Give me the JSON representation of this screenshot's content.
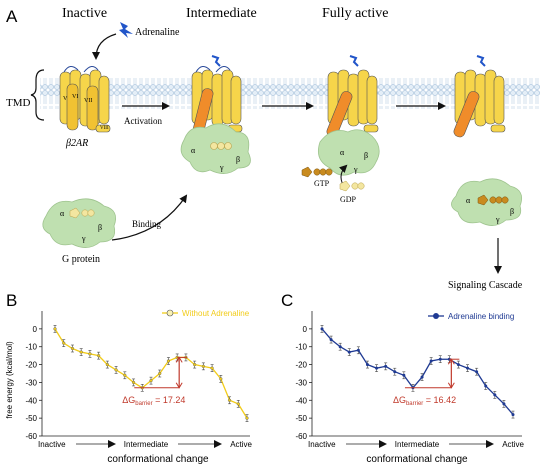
{
  "panelA": {
    "panel_label": "A",
    "stages": [
      "Inactive",
      "Intermediate",
      "Fully active"
    ],
    "adrenaline_label": "Adrenaline",
    "tmd_label": "TMD",
    "receptor_label": "β2AR",
    "activation_label": "Activation",
    "binding_label": "Binding",
    "gprotein_label": "G protein",
    "gtp_label": "GTP",
    "gdp_label": "GDP",
    "signaling_label": "Signaling Cascade",
    "helix_labels": [
      "I",
      "II",
      "III",
      "IV",
      "V",
      "VI",
      "VII",
      "VIII"
    ],
    "subunit_labels": [
      "α",
      "β",
      "γ"
    ]
  },
  "chart_data": [
    {
      "panel_label": "B",
      "type": "line",
      "legend": "Without Adrenaline",
      "legend_position": "top-right",
      "color": "#f2cc1a",
      "marker": "open-circle",
      "xlabel": "conformational change",
      "ylabel": "free energy (kcal/mol)",
      "x_ticks": [
        "Inactive",
        "Intermediate",
        "Active"
      ],
      "ylim": [
        -60,
        10
      ],
      "y_ticks": [
        0,
        -10,
        -20,
        -30,
        -40,
        -50,
        -60
      ],
      "values": [
        0,
        -8,
        -11,
        -13,
        -14,
        -15,
        -20,
        -23,
        -26,
        -30,
        -33,
        -29,
        -25,
        -18,
        -16,
        -16,
        -20,
        -21,
        -22,
        -28,
        -40,
        -42,
        -50
      ],
      "barrier_index_start": 10,
      "barrier_index_end": 14,
      "annotation": "ΔG",
      "annotation_subscript": "barrier",
      "annotation_value": "= 17.24"
    },
    {
      "panel_label": "C",
      "type": "line",
      "legend": "Adrenaline binding",
      "legend_position": "top-right",
      "color": "#1f3a93",
      "marker": "filled-circle",
      "xlabel": "conformational change",
      "ylabel": "",
      "x_ticks": [
        "Inactive",
        "Intermediate",
        "Active"
      ],
      "ylim": [
        -60,
        10
      ],
      "y_ticks": [
        0,
        -10,
        -20,
        -30,
        -40,
        -50,
        -60
      ],
      "values": [
        0,
        -6,
        -10,
        -13,
        -12,
        -20,
        -22,
        -21,
        -24,
        -26,
        -33,
        -27,
        -18,
        -17,
        -17,
        -20,
        -22,
        -24,
        -32,
        -37,
        -42,
        -48
      ],
      "barrier_index_start": 10,
      "barrier_index_end": 14,
      "annotation": "ΔG",
      "annotation_subscript": "barrier",
      "annotation_value": "= 16.42"
    }
  ],
  "colors": {
    "helix_yellow": "#f6d54a",
    "helix_orange": "#f08c2a",
    "gprotein_green": "#bfe0b0",
    "membrane_blue": "#d6e6f2",
    "annotation_red": "#c0392b",
    "adrenaline_blue": "#2155c9"
  }
}
